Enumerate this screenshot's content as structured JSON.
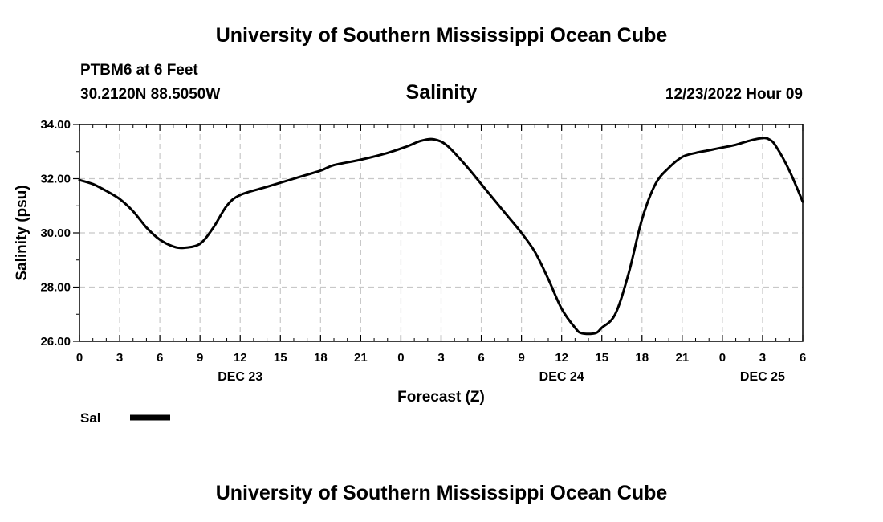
{
  "header": {
    "title": "University of Southern Mississippi Ocean Cube",
    "station": "PTBM6 at 6 Feet",
    "location": "30.2120N  88.5050W",
    "datetime": "12/23/2022 Hour 09"
  },
  "footer": {
    "title": "University of Southern Mississippi Ocean Cube"
  },
  "colors": {
    "line": "#000000",
    "grid": "#c8c8c8",
    "background": "#ffffff"
  },
  "chart_data": {
    "type": "line",
    "title": "Salinity",
    "xlabel": "Forecast (Z)",
    "ylabel": "Salinity (psu)",
    "ylim": [
      26,
      34
    ],
    "xlim": [
      0,
      54
    ],
    "x_unit": "hours from 12/23/2022 00Z",
    "grid": true,
    "legend": "bottom-left",
    "yticks": [
      26,
      28,
      30,
      32,
      34
    ],
    "ytick_labels": [
      "26.00",
      "28.00",
      "30.00",
      "32.00",
      "34.00"
    ],
    "xticks": [
      0,
      3,
      6,
      9,
      12,
      15,
      18,
      21,
      24,
      27,
      30,
      33,
      36,
      39,
      42,
      45,
      48,
      51,
      54
    ],
    "xtick_labels": [
      "0",
      "3",
      "6",
      "9",
      "12",
      "15",
      "18",
      "21",
      "0",
      "3",
      "6",
      "9",
      "12",
      "15",
      "18",
      "21",
      "0",
      "3",
      "6"
    ],
    "date_labels": [
      {
        "x": 12,
        "label": "DEC 23"
      },
      {
        "x": 36,
        "label": "DEC 24"
      },
      {
        "x": 51,
        "label": "DEC 25"
      }
    ],
    "series": [
      {
        "name": "Sal",
        "x": [
          0,
          1,
          2,
          3,
          4,
          5,
          6,
          7,
          7.8,
          9,
          10,
          11,
          12,
          14,
          16,
          18,
          19,
          21,
          23,
          24.5,
          25.5,
          26.5,
          27.5,
          29,
          30,
          31,
          32,
          33,
          34,
          35,
          36,
          37,
          37.5,
          38.5,
          39,
          40,
          41,
          42,
          43,
          44,
          45,
          46,
          47,
          48,
          49,
          50,
          51,
          51.5,
          52,
          53,
          54
        ],
        "values": [
          31.95,
          31.8,
          31.55,
          31.25,
          30.8,
          30.2,
          29.75,
          29.5,
          29.45,
          29.6,
          30.2,
          31.0,
          31.4,
          31.7,
          32.0,
          32.3,
          32.5,
          32.7,
          32.95,
          33.2,
          33.4,
          33.45,
          33.2,
          32.4,
          31.8,
          31.2,
          30.6,
          30.0,
          29.3,
          28.3,
          27.2,
          26.5,
          26.3,
          26.3,
          26.5,
          27.0,
          28.5,
          30.5,
          31.8,
          32.4,
          32.8,
          32.95,
          33.05,
          33.15,
          33.25,
          33.4,
          33.5,
          33.45,
          33.2,
          32.3,
          31.15
        ]
      }
    ]
  }
}
